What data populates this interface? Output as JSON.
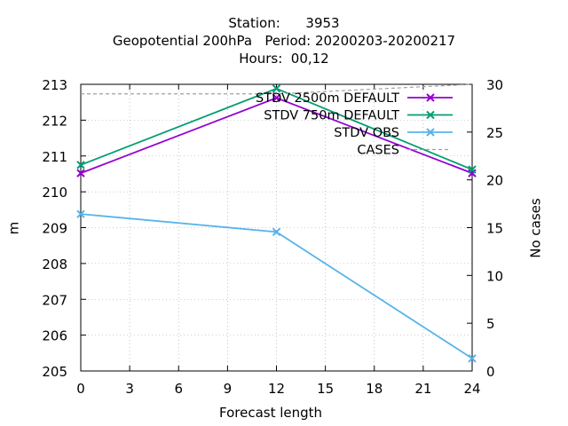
{
  "title_lines": [
    "Station:      3953",
    "Geopotential 200hPa   Period: 20200203-20200217",
    "Hours:  00,12"
  ],
  "chart_data": {
    "type": "line",
    "xlabel": "Forecast length",
    "ylabel": "m",
    "y2label": "No cases",
    "xlim": [
      0,
      24
    ],
    "ylim": [
      205,
      213
    ],
    "y2lim": [
      0,
      30
    ],
    "x_ticks": [
      0,
      3,
      6,
      9,
      12,
      15,
      18,
      21,
      24
    ],
    "y_ticks": [
      205,
      206,
      207,
      208,
      209,
      210,
      211,
      212,
      213
    ],
    "y2_ticks": [
      0,
      5,
      10,
      15,
      20,
      25,
      30
    ],
    "grid": true,
    "legend_position": "top-right",
    "series": [
      {
        "name": "STDV 2500m DEFAULT",
        "legend_label": "STDV 2500m DEFAULT",
        "color": "#9400d3",
        "marker": "x",
        "x": [
          0,
          12,
          24
        ],
        "values": [
          210.52,
          212.62,
          210.52
        ],
        "axis": "y"
      },
      {
        "name": "STDV 750m DEFAULT",
        "legend_label": "STDV 750m DEFAULT",
        "color": "#009e73",
        "marker": "x",
        "x": [
          0,
          12,
          24
        ],
        "values": [
          210.75,
          212.88,
          210.62
        ],
        "axis": "y"
      },
      {
        "name": "STDV OBS",
        "legend_label": "STDV OBS",
        "color": "#56b4e9",
        "marker": "x",
        "x": [
          0,
          12,
          24
        ],
        "values": [
          209.38,
          208.88,
          205.35
        ],
        "axis": "y"
      },
      {
        "name": "CASES",
        "legend_label": "CASES",
        "color": "#a0a0a0",
        "style": "dashed",
        "x": [
          0,
          12,
          24
        ],
        "values": [
          29,
          29,
          30
        ],
        "axis": "y2"
      }
    ]
  }
}
